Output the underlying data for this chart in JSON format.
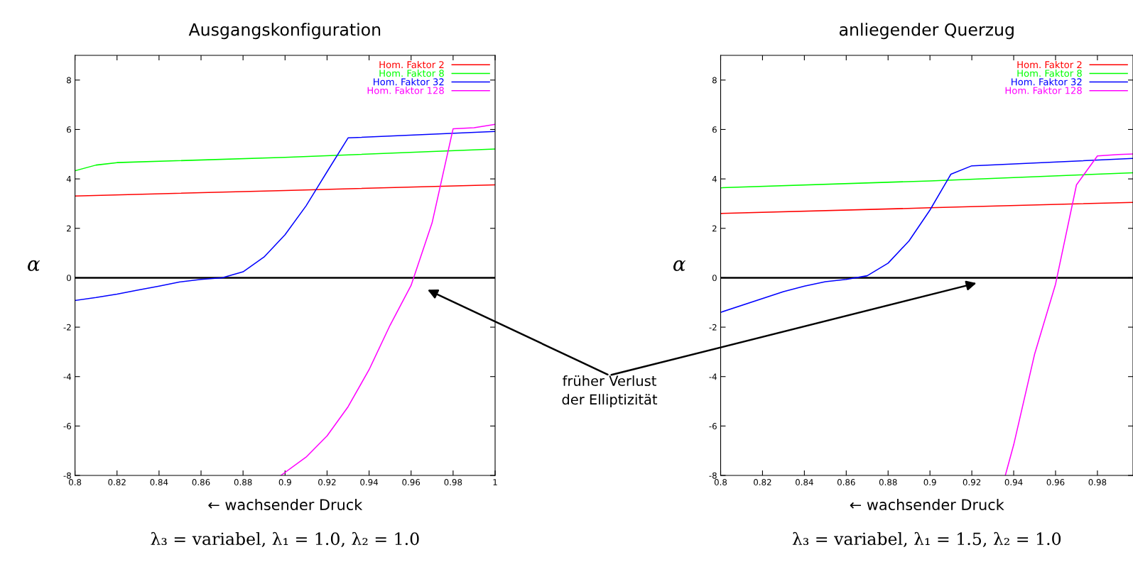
{
  "chart_data": [
    {
      "type": "line",
      "title": "Ausgangskonfiguration",
      "xlabel": "← wachsender Druck",
      "ylabel": "α",
      "xlim": [
        0.8,
        1.0
      ],
      "ylim": [
        -8,
        9
      ],
      "xticks": [
        0.8,
        0.82,
        0.84,
        0.86,
        0.88,
        0.9,
        0.92,
        0.94,
        0.96,
        0.98,
        1
      ],
      "yticks": [
        -8,
        -6,
        -4,
        -2,
        0,
        2,
        4,
        6,
        8
      ],
      "legend": "top right",
      "grid": false,
      "ref_lines": [
        {
          "axis": "y",
          "value": 0,
          "color": "#000000"
        }
      ],
      "annotations": [
        "früher Verlust\nder Elliptizität",
        "λ₃ = variabel, λ₁ = 1.0, λ₂ = 1.0"
      ],
      "series": [
        {
          "name": "Hom. Faktor 2",
          "color": "#ff0000",
          "x": [
            0.8,
            0.9,
            1.0
          ],
          "values": [
            3.31,
            3.53,
            3.76
          ]
        },
        {
          "name": "Hom. Faktor 8",
          "color": "#00ff00",
          "x": [
            0.8,
            0.81,
            0.82,
            0.9,
            1.0
          ],
          "values": [
            4.33,
            4.56,
            4.66,
            4.87,
            5.21
          ]
        },
        {
          "name": "Hom. Faktor 32",
          "color": "#0000ff",
          "x": [
            0.8,
            0.81,
            0.82,
            0.83,
            0.84,
            0.85,
            0.86,
            0.87,
            0.88,
            0.89,
            0.9,
            0.91,
            0.92,
            0.93,
            1.0
          ],
          "values": [
            -0.92,
            -0.8,
            -0.66,
            -0.5,
            -0.34,
            -0.17,
            -0.07,
            0.0,
            0.24,
            0.84,
            1.74,
            2.91,
            4.29,
            5.66,
            5.92
          ]
        },
        {
          "name": "Hom. Faktor 128",
          "color": "#ff00ff",
          "x": [
            0.898,
            0.91,
            0.92,
            0.93,
            0.94,
            0.95,
            0.96,
            0.97,
            0.98,
            0.99,
            1.0
          ],
          "values": [
            -8,
            -7.26,
            -6.4,
            -5.22,
            -3.72,
            -1.92,
            -0.31,
            2.22,
            6.03,
            6.07,
            6.21
          ]
        }
      ]
    },
    {
      "type": "line",
      "title": "anliegender Querzug",
      "xlabel": "← wachsender Druck",
      "ylabel": "α",
      "xlim": [
        0.8,
        0.997
      ],
      "ylim": [
        -8,
        9
      ],
      "xticks": [
        0.8,
        0.82,
        0.84,
        0.86,
        0.88,
        0.9,
        0.92,
        0.94,
        0.96,
        0.98
      ],
      "yticks": [
        -8,
        -6,
        -4,
        -2,
        0,
        2,
        4,
        6,
        8
      ],
      "legend": "top right",
      "grid": false,
      "ref_lines": [
        {
          "axis": "y",
          "value": 0,
          "color": "#000000"
        }
      ],
      "annotations": [
        "λ₃ = variabel, λ₁ = 1.5, λ₂ = 1.0"
      ],
      "series": [
        {
          "name": "Hom. Faktor 2",
          "color": "#ff0000",
          "x": [
            0.8,
            0.9,
            0.997
          ],
          "values": [
            2.6,
            2.83,
            3.05
          ]
        },
        {
          "name": "Hom. Faktor 8",
          "color": "#00ff00",
          "x": [
            0.8,
            0.9,
            0.997
          ],
          "values": [
            3.64,
            3.92,
            4.25
          ]
        },
        {
          "name": "Hom. Faktor 32",
          "color": "#0000ff",
          "x": [
            0.8,
            0.83,
            0.84,
            0.85,
            0.86,
            0.87,
            0.88,
            0.89,
            0.9,
            0.91,
            0.92,
            0.997
          ],
          "values": [
            -1.4,
            -0.56,
            -0.34,
            -0.16,
            -0.07,
            0.08,
            0.59,
            1.49,
            2.74,
            4.19,
            4.53,
            4.83
          ]
        },
        {
          "name": "Hom. Faktor 128",
          "color": "#ff00ff",
          "x": [
            0.936,
            0.94,
            0.95,
            0.96,
            0.97,
            0.98,
            0.99,
            0.997
          ],
          "values": [
            -8,
            -6.76,
            -3.09,
            -0.26,
            3.76,
            4.93,
            4.99,
            5.01
          ]
        }
      ]
    }
  ]
}
